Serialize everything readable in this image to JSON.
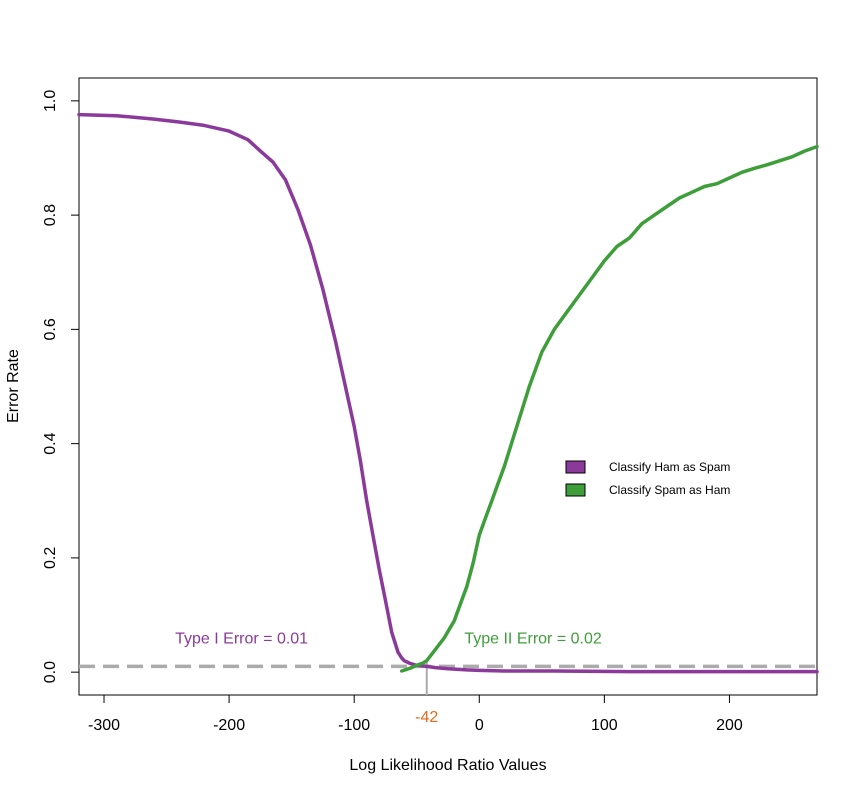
{
  "chart_data": {
    "type": "line",
    "xlabel": "Log Likelihood Ratio Values",
    "ylabel": "Error Rate",
    "xlim": [
      -320,
      270
    ],
    "ylim": [
      -0.04,
      1.04
    ],
    "x_ticks": [
      -300,
      -200,
      -100,
      0,
      100,
      200
    ],
    "y_ticks": [
      0.0,
      0.2,
      0.4,
      0.6,
      0.8,
      1.0
    ],
    "y_tick_labels": [
      "0.0",
      "0.2",
      "0.4",
      "0.6",
      "0.8",
      "1.0"
    ],
    "grid": false,
    "legend_position": "center-right",
    "series": [
      {
        "name": "Classify Ham as Spam",
        "color": "#8B3A9B",
        "x": [
          -320,
          -290,
          -260,
          -240,
          -220,
          -200,
          -185,
          -175,
          -165,
          -155,
          -145,
          -135,
          -125,
          -115,
          -105,
          -100,
          -95,
          -90,
          -85,
          -80,
          -75,
          -70,
          -65,
          -62,
          -60,
          -55,
          -50,
          -45,
          -42,
          -35,
          -25,
          -10,
          0,
          20,
          60,
          120,
          200,
          270
        ],
        "y": [
          0.976,
          0.974,
          0.968,
          0.963,
          0.957,
          0.947,
          0.932,
          0.912,
          0.893,
          0.862,
          0.81,
          0.748,
          0.67,
          0.58,
          0.48,
          0.43,
          0.37,
          0.3,
          0.24,
          0.18,
          0.125,
          0.07,
          0.035,
          0.025,
          0.02,
          0.015,
          0.012,
          0.011,
          0.01,
          0.008,
          0.006,
          0.004,
          0.003,
          0.002,
          0.002,
          0.001,
          0.001,
          0.001
        ]
      },
      {
        "name": "Classify Spam as Ham",
        "color": "#3E9E3A",
        "x": [
          -62,
          -55,
          -50,
          -45,
          -42,
          -35,
          -28,
          -20,
          -15,
          -10,
          -5,
          0,
          5,
          10,
          15,
          20,
          30,
          40,
          50,
          60,
          70,
          80,
          90,
          100,
          110,
          120,
          130,
          140,
          150,
          160,
          170,
          180,
          190,
          200,
          210,
          220,
          230,
          240,
          250,
          260,
          270
        ],
        "y": [
          0.002,
          0.007,
          0.012,
          0.016,
          0.02,
          0.04,
          0.06,
          0.09,
          0.12,
          0.15,
          0.19,
          0.24,
          0.27,
          0.3,
          0.33,
          0.36,
          0.43,
          0.5,
          0.56,
          0.6,
          0.63,
          0.66,
          0.69,
          0.72,
          0.745,
          0.76,
          0.785,
          0.8,
          0.815,
          0.83,
          0.84,
          0.85,
          0.855,
          0.865,
          0.875,
          0.882,
          0.888,
          0.895,
          0.902,
          0.912,
          0.92
        ]
      }
    ],
    "threshold": {
      "x": -42,
      "label": "-42",
      "y": 0.01,
      "color": "#ABABAB",
      "label_color": "#E8691B"
    },
    "annotations": [
      {
        "text": "Type I Error = 0.01",
        "color": "#8B3A9B",
        "x": -190,
        "y": 0.05
      },
      {
        "text": "Type II Error =  0.02",
        "color": "#3E9E3A",
        "x": 43,
        "y": 0.05
      }
    ]
  }
}
